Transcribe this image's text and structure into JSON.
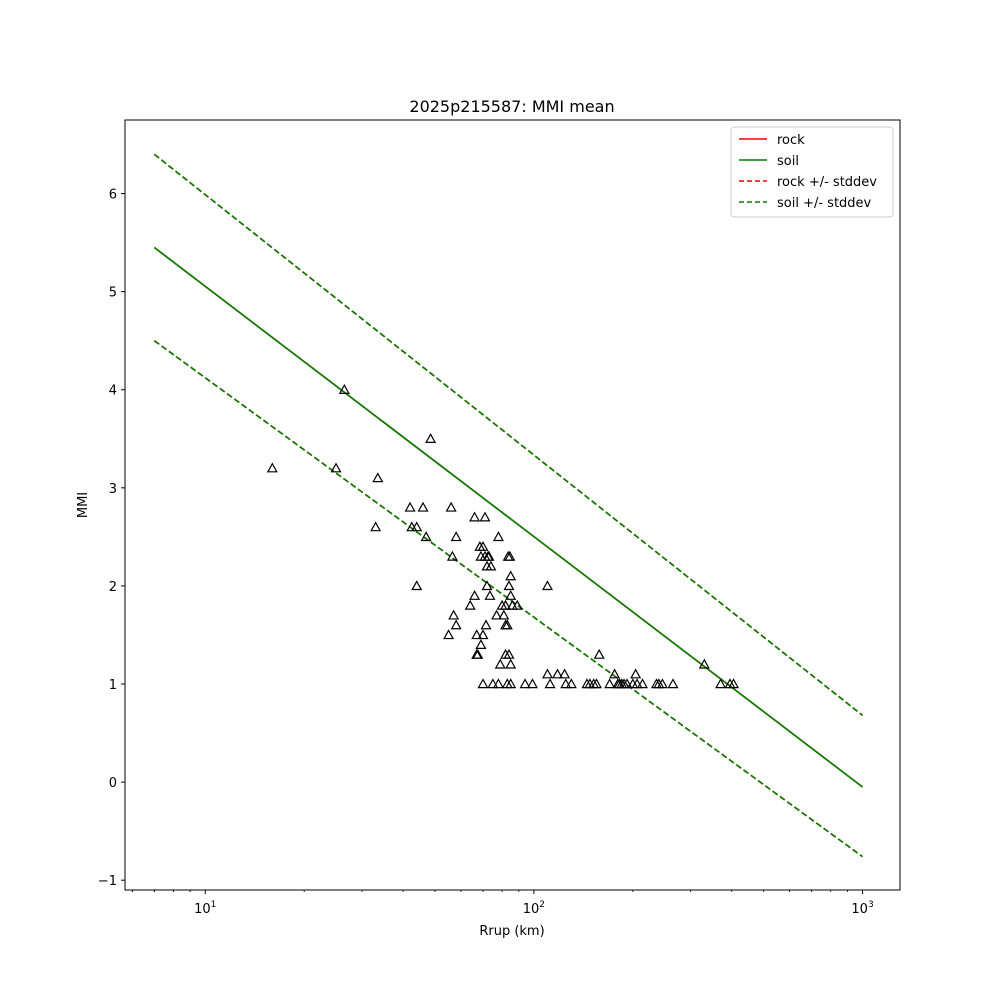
{
  "chart_data": {
    "type": "scatter",
    "title": "2025p215587: MMI mean",
    "xlabel": "Rrup (km)",
    "ylabel": "MMI",
    "xscale": "log",
    "xlim": [
      5.7,
      1300
    ],
    "ylim": [
      -1.1,
      6.75
    ],
    "yticks": [
      -1,
      0,
      1,
      2,
      3,
      4,
      5,
      6
    ],
    "xticks": [
      10,
      100,
      1000
    ],
    "xtick_labels": [
      {
        "base": "10",
        "exp": "1"
      },
      {
        "base": "10",
        "exp": "2"
      },
      {
        "base": "10",
        "exp": "3"
      }
    ],
    "grid": false,
    "legend": {
      "position": "top-right",
      "entries": [
        {
          "label": "rock",
          "color": "#ff0000",
          "style": "solid"
        },
        {
          "label": "soil",
          "color": "#008000",
          "style": "solid"
        },
        {
          "label": "rock +/- stddev",
          "color": "#ff0000",
          "style": "dashed"
        },
        {
          "label": "soil +/- stddev",
          "color": "#008000",
          "style": "dashed"
        }
      ]
    },
    "lines": [
      {
        "name": "rock",
        "color": "#ff0000",
        "style": "solid",
        "x": [
          7,
          1000
        ],
        "y": [
          5.45,
          -0.05
        ]
      },
      {
        "name": "soil",
        "color": "#008000",
        "style": "solid",
        "x": [
          7,
          1000
        ],
        "y": [
          5.45,
          -0.05
        ]
      },
      {
        "name": "rock +/- stddev",
        "color": "#ff0000",
        "style": "dashed",
        "x": [
          7,
          1000
        ],
        "y": [
          6.4,
          0.68
        ]
      },
      {
        "name": "rock +/- stddev",
        "color": "#ff0000",
        "style": "dashed",
        "x": [
          7,
          1000
        ],
        "y": [
          4.5,
          -0.76
        ]
      },
      {
        "name": "soil +/- stddev",
        "color": "#008000",
        "style": "dashed",
        "x": [
          7,
          1000
        ],
        "y": [
          6.4,
          0.68
        ]
      },
      {
        "name": "soil +/- stddev",
        "color": "#008000",
        "style": "dashed",
        "x": [
          7,
          1000
        ],
        "y": [
          4.5,
          -0.76
        ]
      }
    ],
    "observations": {
      "marker": "triangle",
      "color": "#000000",
      "points": [
        [
          16,
          3.2
        ],
        [
          25,
          3.2
        ],
        [
          26.5,
          4.0
        ],
        [
          33,
          2.6
        ],
        [
          33.5,
          3.1
        ],
        [
          42,
          2.8
        ],
        [
          42.5,
          2.6
        ],
        [
          44,
          2.6
        ],
        [
          44,
          2.0
        ],
        [
          46,
          2.8
        ],
        [
          47,
          2.5
        ],
        [
          48.5,
          3.5
        ],
        [
          55,
          1.5
        ],
        [
          56,
          2.8
        ],
        [
          56.5,
          2.3
        ],
        [
          57,
          1.7
        ],
        [
          58,
          2.5
        ],
        [
          58,
          1.6
        ],
        [
          64,
          1.8
        ],
        [
          66,
          2.7
        ],
        [
          66,
          1.9
        ],
        [
          67,
          1.5
        ],
        [
          67,
          1.3
        ],
        [
          67.5,
          1.3
        ],
        [
          68.5,
          2.4
        ],
        [
          69,
          2.3
        ],
        [
          69,
          1.4
        ],
        [
          70,
          2.4
        ],
        [
          70,
          1.0
        ],
        [
          70,
          1.5
        ],
        [
          71,
          2.3
        ],
        [
          71,
          2.7
        ],
        [
          71.5,
          1.6
        ],
        [
          72,
          2.2
        ],
        [
          72,
          2.0
        ],
        [
          72.5,
          2.3
        ],
        [
          73,
          2.3
        ],
        [
          73.5,
          1.9
        ],
        [
          74,
          2.2
        ],
        [
          75,
          1.0
        ],
        [
          77,
          1.7
        ],
        [
          78,
          1.0
        ],
        [
          78,
          2.5
        ],
        [
          79,
          1.2
        ],
        [
          80,
          1.8
        ],
        [
          81,
          1.7
        ],
        [
          82,
          1.3
        ],
        [
          82,
          1.6
        ],
        [
          82,
          1.8
        ],
        [
          83,
          1.6
        ],
        [
          83,
          1.0
        ],
        [
          83.5,
          2.3
        ],
        [
          84,
          2.0
        ],
        [
          84,
          1.3
        ],
        [
          84.5,
          2.3
        ],
        [
          85,
          1.2
        ],
        [
          85,
          2.1
        ],
        [
          85,
          1.9
        ],
        [
          85,
          1.0
        ],
        [
          86,
          1.8
        ],
        [
          89,
          1.8
        ],
        [
          94,
          1.0
        ],
        [
          99,
          1.0
        ],
        [
          110,
          2.0
        ],
        [
          110,
          1.1
        ],
        [
          112,
          1.0
        ],
        [
          118,
          1.1
        ],
        [
          124,
          1.1
        ],
        [
          125,
          1.0
        ],
        [
          130,
          1.0
        ],
        [
          145,
          1.0
        ],
        [
          148,
          1.0
        ],
        [
          152,
          1.0
        ],
        [
          155,
          1.0
        ],
        [
          158,
          1.3
        ],
        [
          170,
          1.0
        ],
        [
          176,
          1.1
        ],
        [
          180,
          1.0
        ],
        [
          182,
          1.0
        ],
        [
          185,
          1.0
        ],
        [
          188,
          1.0
        ],
        [
          192,
          1.0
        ],
        [
          200,
          1.0
        ],
        [
          204,
          1.1
        ],
        [
          206,
          1.0
        ],
        [
          214,
          1.0
        ],
        [
          236,
          1.0
        ],
        [
          240,
          1.0
        ],
        [
          246,
          1.0
        ],
        [
          265,
          1.0
        ],
        [
          330,
          1.2
        ],
        [
          370,
          1.0
        ],
        [
          395,
          1.0
        ],
        [
          405,
          1.0
        ]
      ]
    }
  }
}
